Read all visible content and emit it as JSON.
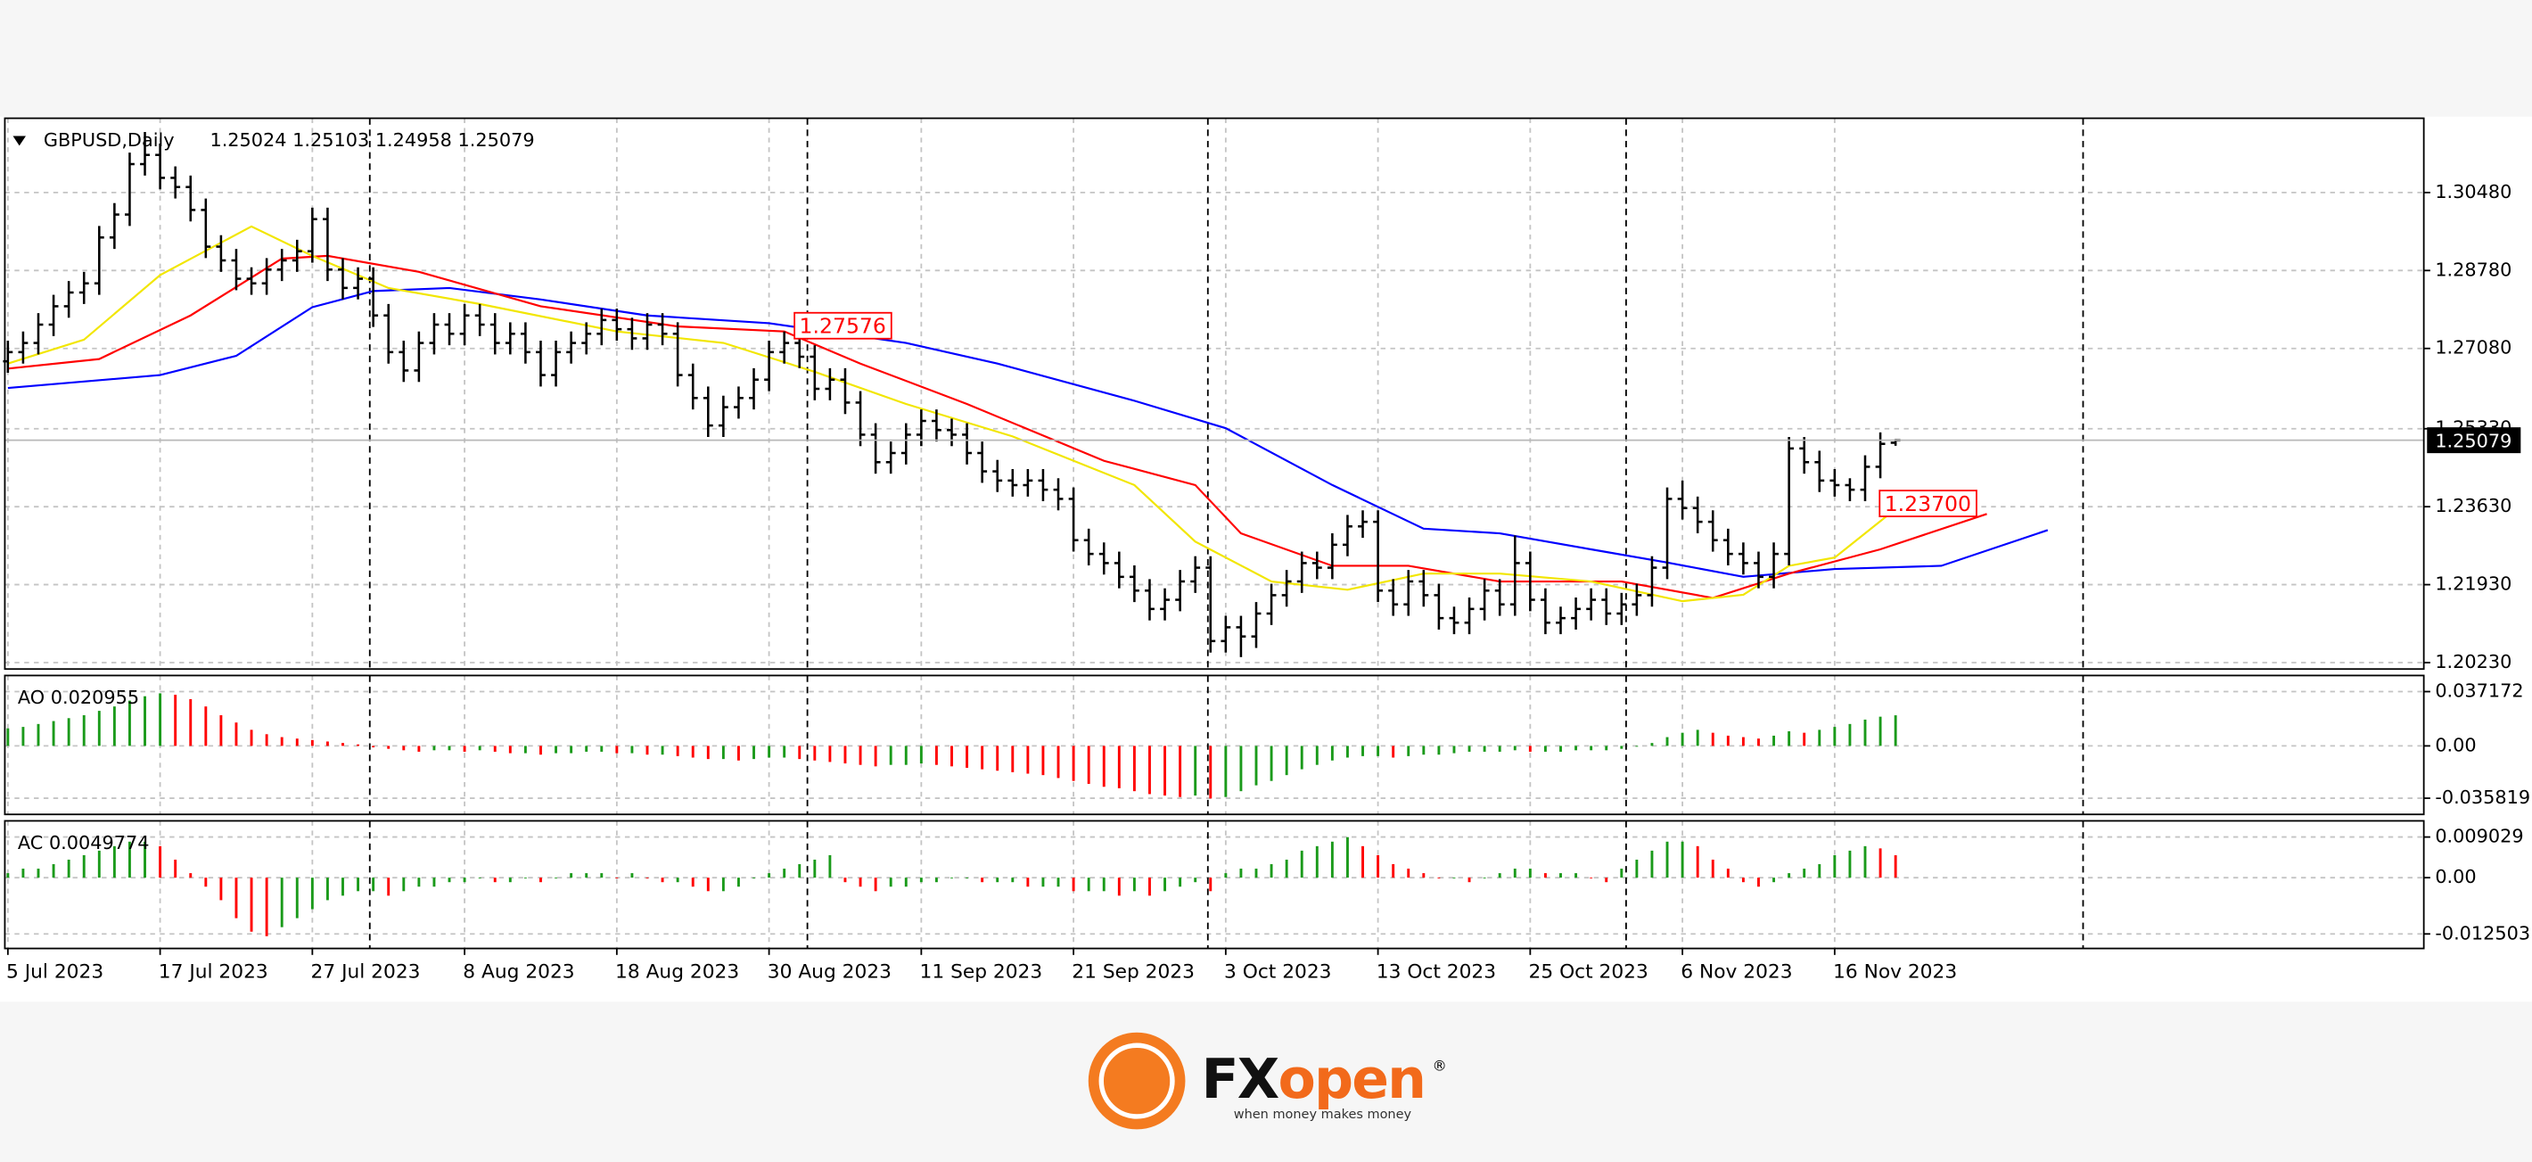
{
  "chart_data": [
    {
      "type": "ohlc",
      "title": "GBPUSD,Daily",
      "ohlc_label": "1.25024 1.25103 1.24958 1.25079",
      "color": "#000000",
      "categories": [
        "5 Jul 2023",
        null,
        null,
        null,
        null,
        null,
        null,
        null,
        null,
        null,
        "17 Jul 2023",
        null,
        null,
        null,
        null,
        null,
        null,
        null,
        null,
        null,
        "27 Jul 2023",
        null,
        null,
        null,
        null,
        null,
        null,
        null,
        null,
        null,
        "8 Aug 2023",
        null,
        null,
        null,
        null,
        null,
        null,
        null,
        null,
        null,
        "18 Aug 2023",
        null,
        null,
        null,
        null,
        null,
        null,
        null,
        null,
        null,
        "30 Aug 2023",
        null,
        null,
        null,
        null,
        null,
        null,
        null,
        null,
        null,
        "11 Sep 2023",
        null,
        null,
        null,
        null,
        null,
        null,
        null,
        null,
        null,
        "21 Sep 2023",
        null,
        null,
        null,
        null,
        null,
        null,
        null,
        null,
        null,
        "3 Oct 2023",
        null,
        null,
        null,
        null,
        null,
        null,
        null,
        null,
        null,
        "13 Oct 2023",
        null,
        null,
        null,
        null,
        null,
        null,
        null,
        null,
        null,
        "25 Oct 2023",
        null,
        null,
        null,
        null,
        null,
        null,
        null,
        null,
        null,
        "6 Nov 2023",
        null,
        null,
        null,
        null,
        null,
        null,
        null,
        null,
        null,
        "16 Nov 2023",
        null,
        null,
        null,
        null
      ],
      "open": [
        1.268,
        1.27,
        1.272,
        1.276,
        1.28,
        1.283,
        1.285,
        1.295,
        1.3,
        1.311,
        1.313,
        1.308,
        1.306,
        1.301,
        1.293,
        1.29,
        1.286,
        1.285,
        1.288,
        1.29,
        1.292,
        1.299,
        1.288,
        1.284,
        1.286,
        1.278,
        1.27,
        1.266,
        1.272,
        1.276,
        1.274,
        1.278,
        1.276,
        1.272,
        1.274,
        1.27,
        1.265,
        1.27,
        1.272,
        1.274,
        1.277,
        1.275,
        1.273,
        1.276,
        1.274,
        1.265,
        1.26,
        1.254,
        1.258,
        1.26,
        1.264,
        1.27,
        1.272,
        1.269,
        1.262,
        1.264,
        1.259,
        1.252,
        1.246,
        1.248,
        1.252,
        1.255,
        1.253,
        1.252,
        1.248,
        1.244,
        1.242,
        1.241,
        1.242,
        1.24,
        1.238,
        1.229,
        1.226,
        1.224,
        1.221,
        1.218,
        1.214,
        1.216,
        1.22,
        1.223,
        1.207,
        1.21,
        1.208,
        1.213,
        1.217,
        1.22,
        1.224,
        1.223,
        1.228,
        1.232,
        1.233,
        1.218,
        1.215,
        1.22,
        1.217,
        1.212,
        1.211,
        1.214,
        1.218,
        1.215,
        1.224,
        1.216,
        1.211,
        1.212,
        1.214,
        1.216,
        1.213,
        1.215,
        1.217,
        1.223,
        1.238,
        1.236,
        1.233,
        1.229,
        1.226,
        1.224,
        1.221,
        1.226,
        1.249,
        1.246,
        1.242,
        1.241,
        1.24,
        1.245,
        1.25024
      ],
      "high": [
        1.2725,
        1.2745,
        1.2785,
        1.2825,
        1.2855,
        1.2875,
        1.2975,
        1.3025,
        1.3135,
        1.318,
        1.3155,
        1.3105,
        1.3085,
        1.3035,
        1.2955,
        1.2925,
        1.2885,
        1.2905,
        1.2925,
        1.2945,
        1.3015,
        1.3015,
        1.2905,
        1.2885,
        1.2885,
        1.2805,
        1.2725,
        1.2745,
        1.2785,
        1.2785,
        1.2805,
        1.2805,
        1.2785,
        1.2765,
        1.2765,
        1.2725,
        1.2725,
        1.2745,
        1.2765,
        1.2795,
        1.2795,
        1.2775,
        1.2785,
        1.2785,
        1.2765,
        1.2675,
        1.2625,
        1.2605,
        1.2625,
        1.2665,
        1.2725,
        1.2745,
        1.2745,
        1.2715,
        1.2665,
        1.2665,
        1.2615,
        1.2545,
        1.2505,
        1.2545,
        1.2575,
        1.2575,
        1.2555,
        1.2545,
        1.2505,
        1.2465,
        1.2445,
        1.2445,
        1.2445,
        1.2425,
        1.2405,
        1.2315,
        1.2285,
        1.2265,
        1.2235,
        1.2205,
        1.2185,
        1.2225,
        1.2255,
        1.2255,
        1.2125,
        1.2125,
        1.2155,
        1.2195,
        1.2225,
        1.2265,
        1.2265,
        1.2305,
        1.2345,
        1.2355,
        1.2355,
        1.2205,
        1.2225,
        1.2225,
        1.2195,
        1.2145,
        1.2165,
        1.2205,
        1.2205,
        1.23,
        1.2265,
        1.2185,
        1.2145,
        1.2165,
        1.2185,
        1.2185,
        1.2175,
        1.2195,
        1.2255,
        1.2405,
        1.242,
        1.2385,
        1.2355,
        1.2315,
        1.2285,
        1.2265,
        1.2285,
        1.2515,
        1.2515,
        1.2485,
        1.2445,
        1.2425,
        1.2475,
        1.2525,
        1.25103
      ],
      "low": [
        1.2655,
        1.2675,
        1.2695,
        1.2735,
        1.2775,
        1.2805,
        1.2825,
        1.2925,
        1.2975,
        1.3085,
        1.3055,
        1.3035,
        1.2985,
        1.2905,
        1.2875,
        1.2835,
        1.2825,
        1.2825,
        1.2855,
        1.2875,
        1.2895,
        1.2855,
        1.2815,
        1.2815,
        1.2755,
        1.2675,
        1.2635,
        1.2635,
        1.2695,
        1.2715,
        1.2715,
        1.2735,
        1.2695,
        1.2695,
        1.2675,
        1.2625,
        1.2625,
        1.2675,
        1.2695,
        1.2715,
        1.2725,
        1.2705,
        1.2705,
        1.2715,
        1.2625,
        1.2575,
        1.2515,
        1.2515,
        1.2555,
        1.2575,
        1.2615,
        1.2675,
        1.2665,
        1.2595,
        1.2595,
        1.2565,
        1.2495,
        1.2435,
        1.2435,
        1.2455,
        1.2495,
        1.2505,
        1.2495,
        1.2455,
        1.2415,
        1.2395,
        1.2385,
        1.2385,
        1.2375,
        1.2355,
        1.2265,
        1.2235,
        1.2215,
        1.2185,
        1.2155,
        1.2115,
        1.2115,
        1.2135,
        1.2175,
        1.2045,
        1.2045,
        1.2035,
        1.2055,
        1.2105,
        1.2145,
        1.2175,
        1.2205,
        1.2205,
        1.2255,
        1.2295,
        1.2155,
        1.2125,
        1.2125,
        1.2145,
        1.2095,
        1.2085,
        1.2085,
        1.2115,
        1.2125,
        1.2125,
        1.2135,
        1.2085,
        1.2085,
        1.2095,
        1.2115,
        1.2105,
        1.2105,
        1.2125,
        1.2145,
        1.2205,
        1.2335,
        1.2305,
        1.2265,
        1.2235,
        1.2215,
        1.2185,
        1.2185,
        1.2235,
        1.2435,
        1.2395,
        1.2385,
        1.2375,
        1.2375,
        1.2425,
        1.24958
      ],
      "close": [
        1.27,
        1.272,
        1.276,
        1.28,
        1.283,
        1.285,
        1.295,
        1.3,
        1.311,
        1.313,
        1.308,
        1.306,
        1.301,
        1.293,
        1.29,
        1.286,
        1.285,
        1.288,
        1.29,
        1.292,
        1.299,
        1.288,
        1.284,
        1.286,
        1.278,
        1.27,
        1.266,
        1.272,
        1.276,
        1.274,
        1.278,
        1.276,
        1.272,
        1.274,
        1.27,
        1.265,
        1.27,
        1.272,
        1.274,
        1.277,
        1.275,
        1.273,
        1.276,
        1.274,
        1.265,
        1.26,
        1.254,
        1.258,
        1.26,
        1.264,
        1.27,
        1.272,
        1.269,
        1.262,
        1.264,
        1.259,
        1.252,
        1.246,
        1.248,
        1.252,
        1.255,
        1.253,
        1.252,
        1.248,
        1.244,
        1.242,
        1.241,
        1.242,
        1.24,
        1.238,
        1.229,
        1.226,
        1.224,
        1.221,
        1.218,
        1.214,
        1.216,
        1.22,
        1.223,
        1.207,
        1.21,
        1.208,
        1.213,
        1.217,
        1.22,
        1.224,
        1.223,
        1.228,
        1.232,
        1.233,
        1.218,
        1.215,
        1.22,
        1.217,
        1.212,
        1.211,
        1.214,
        1.218,
        1.215,
        1.224,
        1.216,
        1.211,
        1.212,
        1.214,
        1.216,
        1.213,
        1.215,
        1.217,
        1.223,
        1.238,
        1.236,
        1.233,
        1.229,
        1.226,
        1.224,
        1.221,
        1.226,
        1.249,
        1.246,
        1.242,
        1.241,
        1.24,
        1.245,
        1.25,
        1.25079
      ],
      "series": [
        {
          "color": "#0000ff",
          "x": [
            0,
            10,
            15,
            20,
            24,
            29,
            35,
            42,
            50,
            59,
            65,
            74,
            80,
            87,
            93,
            98,
            104,
            109,
            114,
            120,
            127,
            134
          ],
          "values": [
            1.2622,
            1.265,
            1.2692,
            1.2798,
            1.2833,
            1.284,
            1.2815,
            1.278,
            1.2763,
            1.272,
            1.2675,
            1.2594,
            1.2534,
            1.241,
            1.2315,
            1.2305,
            1.227,
            1.2241,
            1.221,
            1.2227,
            1.2234,
            1.2312
          ]
        },
        {
          "color": "#ff0000",
          "x": [
            0,
            6,
            12,
            18,
            21,
            27,
            35,
            44,
            51,
            56,
            63,
            72,
            78,
            81,
            87,
            92,
            98,
            106,
            112,
            117,
            123,
            130
          ],
          "values": [
            1.2664,
            1.2685,
            1.278,
            1.2904,
            1.291,
            1.2875,
            1.28,
            1.2756,
            1.2745,
            1.2675,
            1.2587,
            1.2463,
            1.241,
            1.2305,
            1.2234,
            1.2234,
            1.22,
            1.22,
            1.2164,
            1.2217,
            1.227,
            1.2347
          ]
        },
        {
          "color": "#f2e600",
          "x": [
            0,
            5,
            10,
            16,
            20,
            25,
            31,
            40,
            47,
            53,
            59,
            66,
            74,
            78,
            83,
            88,
            93,
            98,
            104,
            110,
            114,
            117,
            120,
            124
          ],
          "values": [
            1.2675,
            1.2727,
            1.2868,
            1.2974,
            1.291,
            1.284,
            1.2805,
            1.2745,
            1.272,
            1.2657,
            1.2587,
            1.2516,
            1.241,
            1.2287,
            1.22,
            1.2182,
            1.2217,
            1.2217,
            1.22,
            1.2157,
            1.2171,
            1.2234,
            1.2252,
            1.2358
          ]
        }
      ],
      "annotations": [
        1.27576,
        {
          "value": 1.237,
          "label": "1.23700"
        }
      ],
      "current_price": 1.25079,
      "xlim": [
        -0.2,
        158.7
      ],
      "ylim": [
        1.2009,
        1.321
      ],
      "yticks": [
        {
          "value": 1.3048,
          "label": "1.30480"
        },
        {
          "value": 1.2878,
          "label": "1.28780"
        },
        {
          "value": 1.2708,
          "label": "1.27080"
        },
        {
          "value": 1.2533,
          "label": "1.25330"
        },
        {
          "value": 1.2363,
          "label": "1.23630"
        },
        {
          "value": 1.2193,
          "label": "1.21930"
        },
        {
          "value": 1.2023,
          "label": "1.20230"
        }
      ],
      "grid": true
    },
    {
      "type": "histogram",
      "title": "AO 0.020955",
      "up_color": "#1a9a1a",
      "down_color": "#ff0000",
      "values": [
        0.012,
        0.013,
        0.015,
        0.017,
        0.019,
        0.021,
        0.024,
        0.027,
        0.031,
        0.034,
        0.036,
        0.035,
        0.032,
        0.027,
        0.021,
        0.016,
        0.011,
        0.008,
        0.006,
        0.005,
        0.004,
        0.003,
        0.002,
        0.001,
        -0.001,
        -0.002,
        -0.003,
        -0.004,
        -0.003,
        -0.003,
        -0.004,
        -0.003,
        -0.004,
        -0.005,
        -0.005,
        -0.006,
        -0.005,
        -0.005,
        -0.004,
        -0.004,
        -0.005,
        -0.005,
        -0.006,
        -0.006,
        -0.007,
        -0.008,
        -0.009,
        -0.009,
        -0.01,
        -0.009,
        -0.008,
        -0.008,
        -0.009,
        -0.01,
        -0.011,
        -0.012,
        -0.013,
        -0.014,
        -0.013,
        -0.013,
        -0.012,
        -0.013,
        -0.014,
        -0.015,
        -0.016,
        -0.017,
        -0.018,
        -0.019,
        -0.02,
        -0.022,
        -0.024,
        -0.026,
        -0.028,
        -0.029,
        -0.031,
        -0.033,
        -0.034,
        -0.035,
        -0.034,
        -0.036,
        -0.035,
        -0.031,
        -0.027,
        -0.024,
        -0.02,
        -0.016,
        -0.013,
        -0.01,
        -0.008,
        -0.007,
        -0.007,
        -0.008,
        -0.007,
        -0.006,
        -0.006,
        -0.005,
        -0.004,
        -0.004,
        -0.004,
        -0.003,
        -0.004,
        -0.004,
        -0.004,
        -0.003,
        -0.003,
        -0.003,
        -0.002,
        0,
        0.002,
        0.006,
        0.009,
        0.011,
        0.009,
        0.007,
        0.006,
        0.005,
        0.007,
        0.01,
        0.009,
        0.011,
        0.013,
        0.015,
        0.018,
        0.02,
        0.020955
      ],
      "ylim": [
        -0.0469,
        0.0482
      ],
      "yticks": [
        0.037172,
        {
          "value": 0,
          "label": "0.00"
        },
        -0.035819
      ]
    },
    {
      "type": "histogram",
      "title": "AC 0.0049774",
      "up_color": "#1a9a1a",
      "down_color": "#ff0000",
      "values": [
        0.001,
        0.002,
        0.002,
        0.003,
        0.004,
        0.005,
        0.006,
        0.007,
        0.008,
        0.008,
        0.007,
        0.004,
        0.001,
        -0.002,
        -0.005,
        -0.009,
        -0.012,
        -0.013,
        -0.011,
        -0.009,
        -0.007,
        -0.005,
        -0.004,
        -0.003,
        -0.003,
        -0.004,
        -0.003,
        -0.002,
        -0.002,
        -0.001,
        -0.001,
        0,
        -0.001,
        -0.001,
        0,
        -0.001,
        0,
        0.001,
        0.001,
        0.001,
        0,
        0.001,
        0,
        -0.001,
        -0.001,
        -0.002,
        -0.003,
        -0.003,
        -0.002,
        0,
        0.001,
        0.002,
        0.003,
        0.004,
        0.005,
        -0.001,
        -0.002,
        -0.003,
        -0.002,
        -0.002,
        -0.001,
        -0.001,
        0,
        0,
        -0.001,
        -0.001,
        -0.001,
        -0.002,
        -0.002,
        -0.002,
        -0.003,
        -0.003,
        -0.003,
        -0.004,
        -0.003,
        -0.004,
        -0.003,
        -0.002,
        -0.001,
        -0.003,
        0.001,
        0.002,
        0.002,
        0.003,
        0.004,
        0.006,
        0.007,
        0.008,
        0.009,
        0.007,
        0.005,
        0.003,
        0.002,
        0.001,
        0,
        0,
        -0.001,
        0,
        0.001,
        0.002,
        0.002,
        0.001,
        0.001,
        0.001,
        0,
        -0.001,
        0.002,
        0.004,
        0.006,
        0.008,
        0.008,
        0.007,
        0.004,
        0.002,
        -0.001,
        -0.002,
        -0.001,
        0.001,
        0.002,
        0.003,
        0.005,
        0.006,
        0.007,
        0.0065,
        0.0049774
      ],
      "ylim": [
        -0.01573,
        0.01262
      ],
      "yticks": [
        0.009029,
        {
          "value": 0,
          "label": "0.00"
        },
        -0.012503
      ]
    }
  ],
  "logo": {
    "name": [
      "FX",
      "open"
    ],
    "mark": "®",
    "tagline": "when money makes money"
  }
}
